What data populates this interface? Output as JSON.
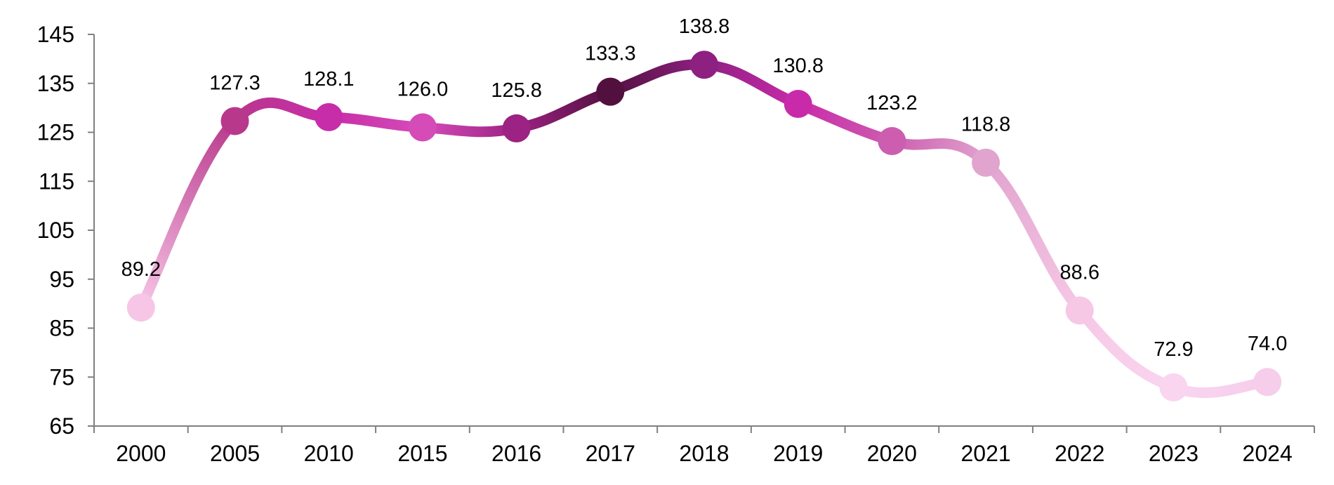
{
  "chart_data": {
    "type": "line",
    "title": "",
    "xlabel": "",
    "ylabel": "",
    "categories": [
      "2000",
      "2005",
      "2010",
      "2015",
      "2016",
      "2017",
      "2018",
      "2019",
      "2020",
      "2021",
      "2022",
      "2023",
      "2024"
    ],
    "series": [
      {
        "values": [
          89.2,
          127.3,
          128.1,
          126.0,
          125.8,
          133.3,
          138.8,
          130.8,
          123.2,
          118.8,
          88.6,
          72.9,
          74.0
        ],
        "labels": [
          "89.2",
          "127.3",
          "128.1",
          "126.0",
          "125.8",
          "133.3",
          "138.8",
          "130.8",
          "123.2",
          "118.8",
          "88.6",
          "72.9",
          "74.0"
        ],
        "point_colors": [
          "#F7C6E6",
          "#B8388C",
          "#C72DA8",
          "#D54BB8",
          "#9C2283",
          "#52103F",
          "#8E2081",
          "#C92AAA",
          "#CC5DAF",
          "#E1A4CF",
          "#F6C8E5",
          "#F9D5F0",
          "#F6CDEB"
        ]
      }
    ],
    "ylim": [
      65,
      145
    ],
    "yticks": [
      65,
      75,
      85,
      95,
      105,
      115,
      125,
      135,
      145
    ],
    "ytick_labels": [
      "65",
      "75",
      "85",
      "95",
      "105",
      "115",
      "125",
      "135",
      "145"
    ],
    "grid": false,
    "legend": "none",
    "axis_color": "#808080"
  }
}
